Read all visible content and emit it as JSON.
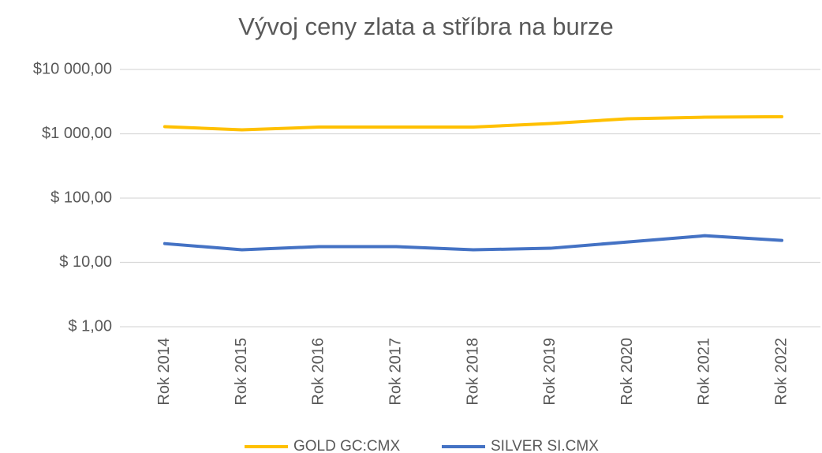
{
  "chart_data": {
    "type": "line",
    "title": "Vývoj ceny zlata a stříbra na burze",
    "categories": [
      "Rok 2014",
      "Rok 2015",
      "Rok 2016",
      "Rok 2017",
      "Rok 2018",
      "Rok 2019",
      "Rok 2020",
      "Rok 2021",
      "Rok 2022"
    ],
    "series": [
      {
        "name": "GOLD GC:CMX",
        "color": "#ffc000",
        "values": [
          1290,
          1150,
          1270,
          1270,
          1270,
          1445,
          1710,
          1810,
          1840
        ]
      },
      {
        "name": "SILVER SI.CMX",
        "color": "#4472c4",
        "values": [
          19.6,
          15.7,
          17.6,
          17.6,
          15.7,
          16.6,
          20.8,
          26,
          22
        ]
      }
    ],
    "log_scale": true,
    "ylim": [
      1,
      10000
    ],
    "yticks": [
      {
        "value": 1,
        "label": "$ 1,00"
      },
      {
        "value": 10,
        "label": "$ 10,00"
      },
      {
        "value": 100,
        "label": "$ 100,00"
      },
      {
        "value": 1000,
        "label": "$1 000,00"
      },
      {
        "value": 10000,
        "label": "$10 000,00"
      }
    ],
    "grid": true,
    "legend": "bottom"
  }
}
